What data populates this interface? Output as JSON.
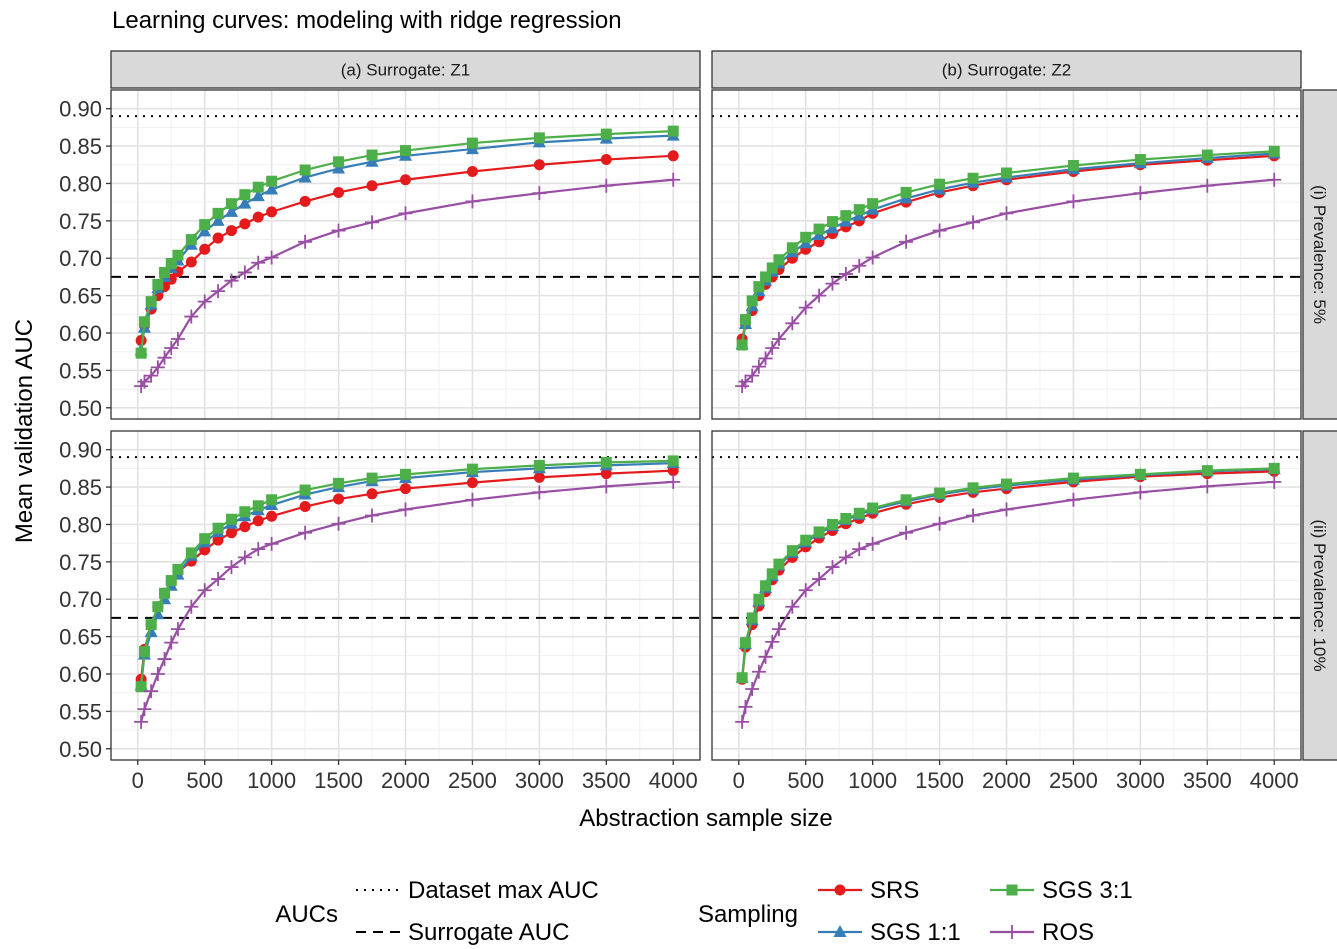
{
  "chart_data": {
    "type": "line",
    "title": "Learning curves: modeling with ridge regression",
    "xlabel": "Abstraction sample size",
    "ylabel": "Mean validation AUC",
    "xlim": [
      -200,
      4200
    ],
    "ylim": [
      0.485,
      0.925
    ],
    "x_ticks": [
      "0",
      "500",
      "1000",
      "1500",
      "2000",
      "2500",
      "3000",
      "3500",
      "4000"
    ],
    "y_ticks": [
      "0.50",
      "0.55",
      "0.60",
      "0.65",
      "0.70",
      "0.75",
      "0.80",
      "0.85",
      "0.90"
    ],
    "grid": true,
    "col_facets": [
      "(a) Surrogate: Z1",
      "(b) Surrogate: Z2"
    ],
    "row_facets": [
      "(i) Prevalence: 5%",
      "(ii) Prevalence: 10%"
    ],
    "x": [
      25,
      50,
      100,
      150,
      200,
      250,
      300,
      400,
      500,
      600,
      700,
      800,
      900,
      1000,
      1250,
      1500,
      1750,
      2000,
      2500,
      3000,
      3500,
      4000
    ],
    "reference_lines": [
      {
        "name": "Dataset max AUC",
        "style": "dotted",
        "value": 0.89
      },
      {
        "name": "Surrogate AUC",
        "style": "dashed",
        "value": 0.675
      }
    ],
    "series_styles": [
      {
        "name": "SRS",
        "color": "#E41A1C",
        "marker": "circle"
      },
      {
        "name": "SGS 1:1",
        "color": "#377EB8",
        "marker": "triangle"
      },
      {
        "name": "SGS 3:1",
        "color": "#4DAF4A",
        "marker": "square"
      },
      {
        "name": "ROS",
        "color": "#984EA3",
        "marker": "plus"
      }
    ],
    "panels": [
      {
        "row": 0,
        "col": 0,
        "series": [
          {
            "name": "SRS",
            "values": [
              0.59,
              0.61,
              0.632,
              0.65,
              0.662,
              0.672,
              0.682,
              0.695,
              0.712,
              0.727,
              0.737,
              0.746,
              0.755,
              0.762,
              0.776,
              0.788,
              0.797,
              0.805,
              0.816,
              0.825,
              0.832,
              0.837
            ]
          },
          {
            "name": "SGS 1:1",
            "values": [
              0.577,
              0.607,
              0.638,
              0.66,
              0.675,
              0.687,
              0.697,
              0.718,
              0.736,
              0.75,
              0.762,
              0.773,
              0.783,
              0.792,
              0.808,
              0.82,
              0.829,
              0.837,
              0.846,
              0.855,
              0.86,
              0.864
            ]
          },
          {
            "name": "SGS 3:1",
            "values": [
              0.573,
              0.615,
              0.642,
              0.665,
              0.681,
              0.693,
              0.704,
              0.725,
              0.745,
              0.76,
              0.773,
              0.785,
              0.795,
              0.803,
              0.818,
              0.829,
              0.838,
              0.844,
              0.854,
              0.861,
              0.866,
              0.87
            ]
          },
          {
            "name": "ROS",
            "values": [
              0.529,
              0.535,
              0.543,
              0.554,
              0.567,
              0.58,
              0.592,
              0.622,
              0.642,
              0.656,
              0.67,
              0.681,
              0.694,
              0.701,
              0.722,
              0.737,
              0.748,
              0.76,
              0.776,
              0.787,
              0.797,
              0.805
            ]
          }
        ]
      },
      {
        "row": 0,
        "col": 1,
        "series": [
          {
            "name": "SRS",
            "values": [
              0.592,
              0.612,
              0.63,
              0.65,
              0.665,
              0.675,
              0.685,
              0.7,
              0.712,
              0.722,
              0.733,
              0.742,
              0.75,
              0.76,
              0.775,
              0.788,
              0.797,
              0.805,
              0.816,
              0.825,
              0.831,
              0.837
            ]
          },
          {
            "name": "SGS 1:1",
            "values": [
              0.585,
              0.612,
              0.636,
              0.656,
              0.67,
              0.682,
              0.693,
              0.708,
              0.72,
              0.731,
              0.74,
              0.749,
              0.757,
              0.765,
              0.78,
              0.792,
              0.801,
              0.808,
              0.819,
              0.827,
              0.834,
              0.84
            ]
          },
          {
            "name": "SGS 3:1",
            "values": [
              0.584,
              0.618,
              0.643,
              0.662,
              0.675,
              0.687,
              0.698,
              0.714,
              0.728,
              0.739,
              0.749,
              0.757,
              0.765,
              0.773,
              0.788,
              0.799,
              0.807,
              0.814,
              0.824,
              0.832,
              0.838,
              0.843
            ]
          },
          {
            "name": "ROS",
            "values": [
              0.529,
              0.535,
              0.543,
              0.555,
              0.566,
              0.58,
              0.592,
              0.613,
              0.634,
              0.65,
              0.666,
              0.679,
              0.69,
              0.701,
              0.722,
              0.737,
              0.748,
              0.76,
              0.776,
              0.787,
              0.797,
              0.805
            ]
          }
        ]
      },
      {
        "row": 1,
        "col": 0,
        "series": [
          {
            "name": "SRS",
            "values": [
              0.593,
              0.633,
              0.665,
              0.69,
              0.708,
              0.723,
              0.736,
              0.751,
              0.766,
              0.779,
              0.789,
              0.797,
              0.805,
              0.811,
              0.824,
              0.834,
              0.841,
              0.848,
              0.856,
              0.863,
              0.868,
              0.872
            ]
          },
          {
            "name": "SGS 1:1",
            "values": [
              0.585,
              0.626,
              0.656,
              0.68,
              0.7,
              0.718,
              0.733,
              0.758,
              0.776,
              0.79,
              0.801,
              0.811,
              0.819,
              0.826,
              0.84,
              0.85,
              0.858,
              0.862,
              0.87,
              0.875,
              0.879,
              0.882
            ]
          },
          {
            "name": "SGS 3:1",
            "values": [
              0.583,
              0.63,
              0.666,
              0.69,
              0.708,
              0.725,
              0.74,
              0.762,
              0.781,
              0.795,
              0.807,
              0.817,
              0.825,
              0.833,
              0.846,
              0.855,
              0.862,
              0.867,
              0.874,
              0.879,
              0.883,
              0.885
            ]
          },
          {
            "name": "ROS",
            "values": [
              0.536,
              0.553,
              0.577,
              0.6,
              0.62,
              0.642,
              0.66,
              0.69,
              0.712,
              0.727,
              0.743,
              0.756,
              0.767,
              0.774,
              0.789,
              0.801,
              0.812,
              0.82,
              0.833,
              0.843,
              0.851,
              0.857
            ]
          }
        ]
      },
      {
        "row": 1,
        "col": 1,
        "series": [
          {
            "name": "SRS",
            "values": [
              0.593,
              0.636,
              0.666,
              0.691,
              0.71,
              0.726,
              0.739,
              0.756,
              0.77,
              0.782,
              0.792,
              0.801,
              0.808,
              0.815,
              0.827,
              0.836,
              0.843,
              0.848,
              0.857,
              0.864,
              0.868,
              0.871
            ]
          },
          {
            "name": "SGS 1:1",
            "values": [
              0.595,
              0.64,
              0.672,
              0.697,
              0.715,
              0.731,
              0.745,
              0.762,
              0.776,
              0.788,
              0.798,
              0.806,
              0.813,
              0.82,
              0.831,
              0.84,
              0.847,
              0.852,
              0.86,
              0.866,
              0.871,
              0.874
            ]
          },
          {
            "name": "SGS 3:1",
            "values": [
              0.595,
              0.642,
              0.675,
              0.7,
              0.718,
              0.734,
              0.747,
              0.765,
              0.779,
              0.79,
              0.8,
              0.808,
              0.815,
              0.822,
              0.833,
              0.842,
              0.849,
              0.854,
              0.862,
              0.867,
              0.872,
              0.875
            ]
          },
          {
            "name": "ROS",
            "values": [
              0.536,
              0.556,
              0.58,
              0.603,
              0.623,
              0.643,
              0.66,
              0.69,
              0.712,
              0.727,
              0.743,
              0.756,
              0.767,
              0.774,
              0.789,
              0.801,
              0.812,
              0.82,
              0.833,
              0.843,
              0.851,
              0.857
            ]
          }
        ]
      }
    ],
    "legend": {
      "position": "bottom",
      "aucs_title": "AUCs",
      "sampling_title": "Sampling"
    }
  }
}
